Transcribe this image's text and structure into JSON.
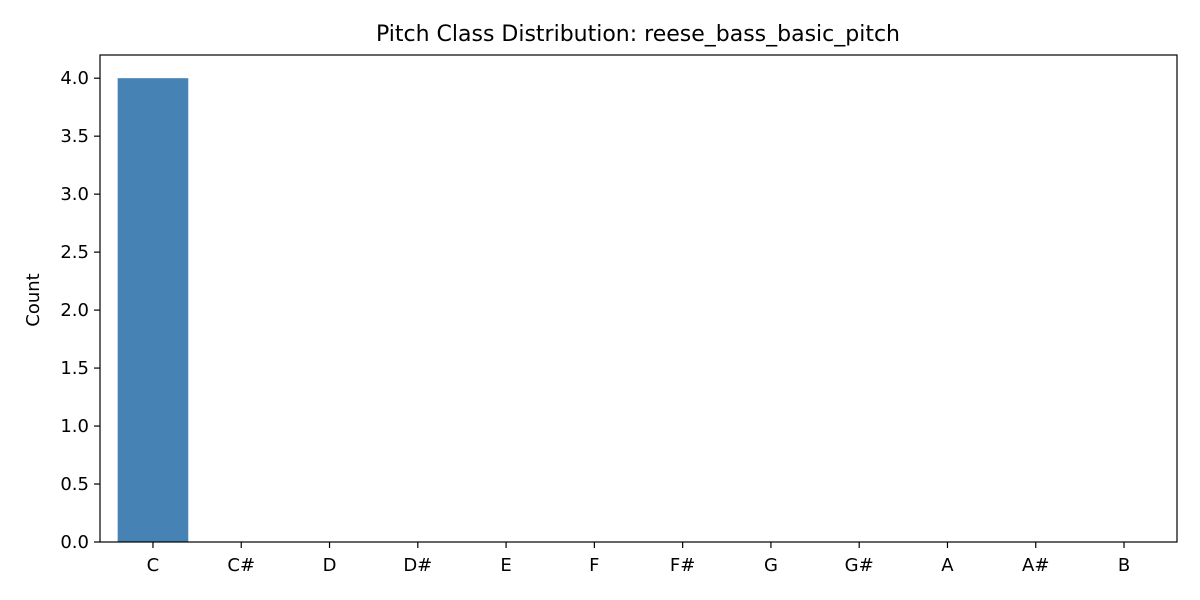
{
  "chart_data": {
    "type": "bar",
    "title": "Pitch Class Distribution: reese_bass_basic_pitch",
    "xlabel": "",
    "ylabel": "Count",
    "categories": [
      "C",
      "C#",
      "D",
      "D#",
      "E",
      "F",
      "F#",
      "G",
      "G#",
      "A",
      "A#",
      "B"
    ],
    "values": [
      4,
      0,
      0,
      0,
      0,
      0,
      0,
      0,
      0,
      0,
      0,
      0
    ],
    "ylim": [
      0,
      4.2
    ],
    "yticks": [
      "0.0",
      "0.5",
      "1.0",
      "1.5",
      "2.0",
      "2.5",
      "3.0",
      "3.5",
      "4.0"
    ],
    "bar_color": "#4682b4",
    "grid": false,
    "legend": "none"
  }
}
